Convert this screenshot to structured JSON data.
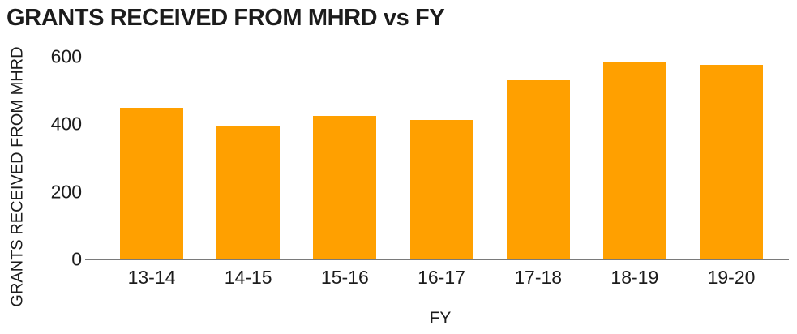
{
  "chart_data": {
    "type": "bar",
    "title": "GRANTS RECEIVED FROM MHRD vs FY",
    "xlabel": "FY",
    "ylabel": "GRANTS RECEIVED FROM MHRD",
    "categories": [
      "13-14",
      "14-15",
      "15-16",
      "16-17",
      "17-18",
      "18-19",
      "19-20"
    ],
    "values": [
      450,
      395,
      425,
      412,
      530,
      585,
      575
    ],
    "yticks": [
      0,
      200,
      400,
      600
    ],
    "ylim": [
      0,
      600
    ],
    "grid": false,
    "legend_position": "none",
    "bar_color": "#FFA000",
    "axis_color": "#7a7a7a",
    "text_color": "#1c1c1c"
  }
}
